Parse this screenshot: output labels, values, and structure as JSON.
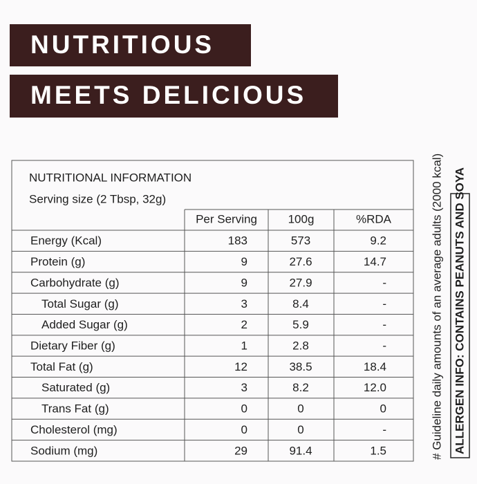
{
  "header": {
    "line1": "NUTRITIOUS",
    "line2": "MEETS DELICIOUS"
  },
  "table": {
    "title": "NUTRITIONAL INFORMATION",
    "serving": "Serving size (2 Tbsp, 32g)",
    "columns": [
      "Per Serving",
      "100g",
      "%RDA"
    ],
    "rows": [
      {
        "label": "Energy (Kcal)",
        "indent": false,
        "cells": [
          "183",
          "573",
          "9.2"
        ]
      },
      {
        "label": "Protein (g)",
        "indent": false,
        "cells": [
          "9",
          "27.6",
          "14.7"
        ]
      },
      {
        "label": "Carbohydrate (g)",
        "indent": false,
        "cells": [
          "9",
          "27.9",
          "-"
        ]
      },
      {
        "label": "Total Sugar (g)",
        "indent": true,
        "cells": [
          "3",
          "8.4",
          "-"
        ]
      },
      {
        "label": "Added Sugar (g)",
        "indent": true,
        "cells": [
          "2",
          "5.9",
          "-"
        ]
      },
      {
        "label": "Dietary Fiber (g)",
        "indent": false,
        "cells": [
          "1",
          "2.8",
          "-"
        ]
      },
      {
        "label": "Total Fat (g)",
        "indent": false,
        "cells": [
          "12",
          "38.5",
          "18.4"
        ]
      },
      {
        "label": "Saturated (g)",
        "indent": true,
        "cells": [
          "3",
          "8.2",
          "12.0"
        ]
      },
      {
        "label": "Trans Fat (g)",
        "indent": true,
        "cells": [
          "0",
          "0",
          "0"
        ]
      },
      {
        "label": "Cholesterol (mg)",
        "indent": false,
        "cells": [
          "0",
          "0",
          "-"
        ]
      },
      {
        "label": "Sodium (mg)",
        "indent": false,
        "cells": [
          "29",
          "91.4",
          "1.5"
        ]
      }
    ]
  },
  "footnote": "# Guideline daily amounts of an average adults (2000 kcal)",
  "allergen": "ALLERGEN INFO: CONTAINS PEANUTS AND SOYA"
}
